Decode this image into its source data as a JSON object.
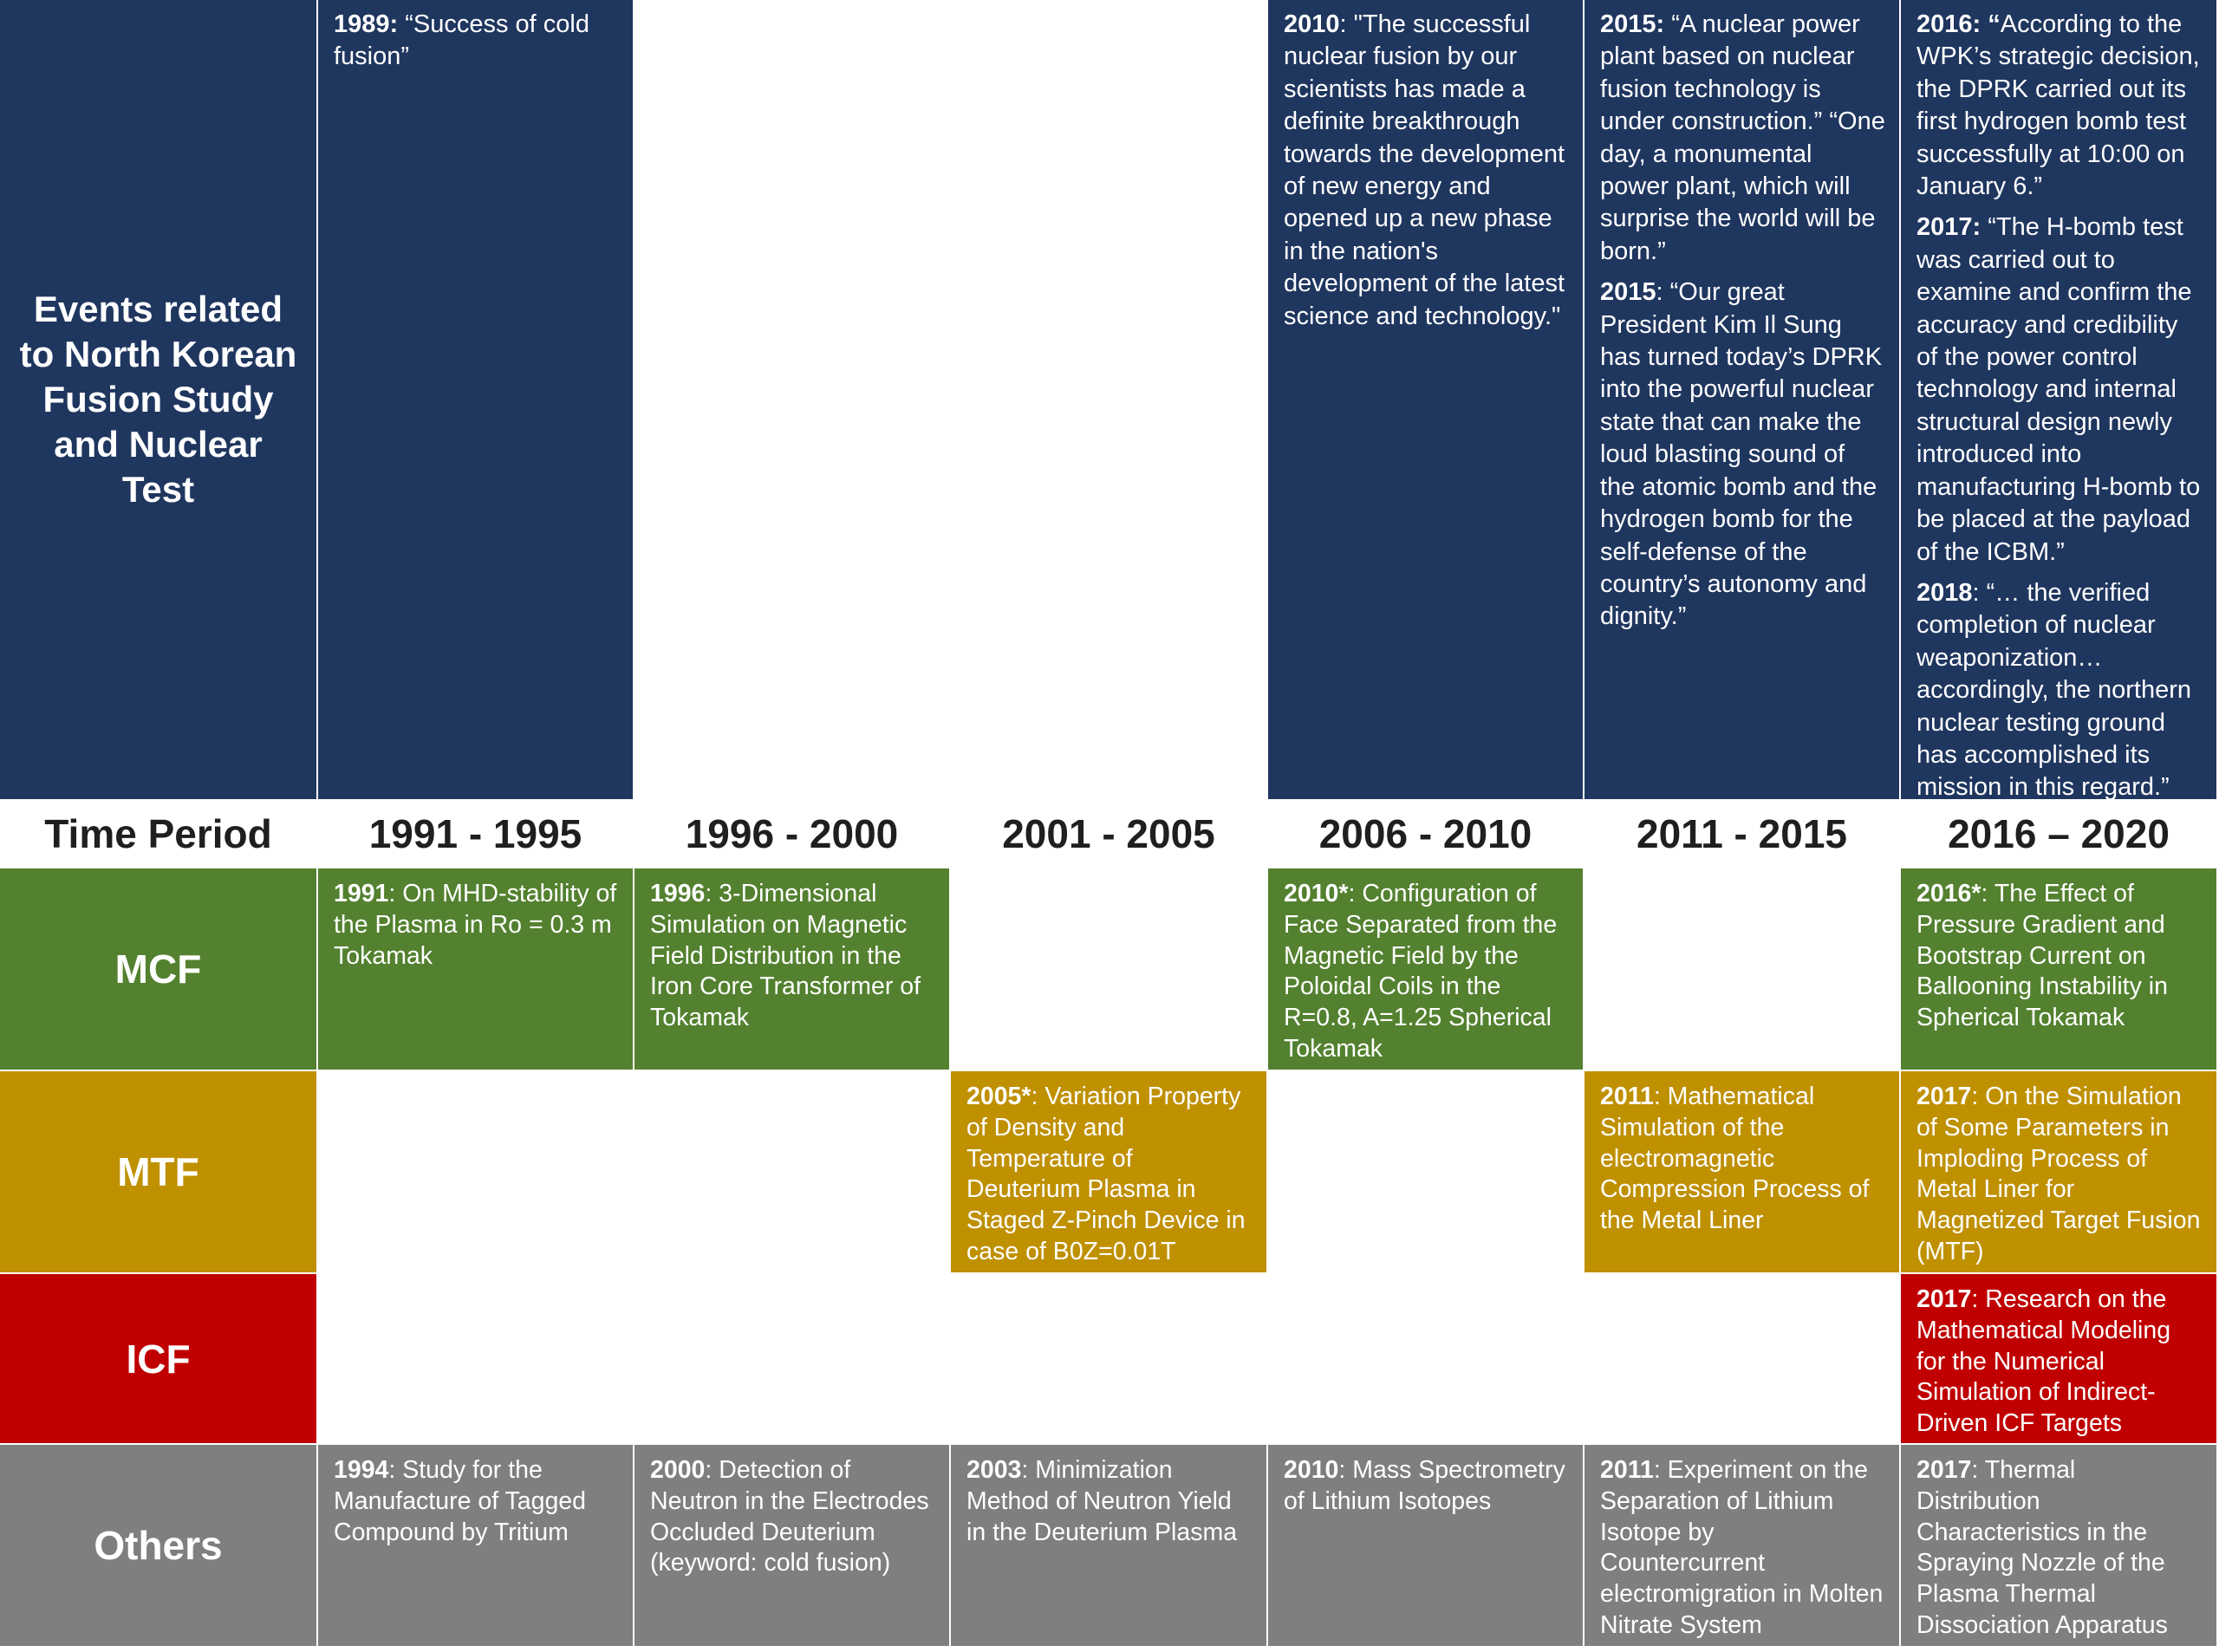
{
  "colors": {
    "events": "#1f365f",
    "mcf": "#53812f",
    "mtf": "#bf9000",
    "icf": "#c00000",
    "others": "#7f7f7f",
    "header_text": "#1f1f1f"
  },
  "events_label": "Events related to North Korean Fusion Study and Nuclear Test",
  "time_period_label": "Time Period",
  "periods": [
    "1991 - 1995",
    "1996 - 2000",
    "2001 - 2005",
    "2006 - 2010",
    "2011 - 2015",
    "2016 – 2020"
  ],
  "events": [
    [
      {
        "year": "1989:",
        "text": " “Success of cold fusion”"
      }
    ],
    [],
    [],
    [
      {
        "year": "2010",
        "text": ": \"The successful nuclear fusion by our scientists has made a definite breakthrough towards the development of new energy and opened up a new phase in the nation's development of the latest science and technology.\""
      }
    ],
    [
      {
        "year": "2015:",
        "text": " “A nuclear power plant based on nuclear fusion technology is under construction.” “One day, a monumental power plant, which will surprise the world will be born.”"
      },
      {
        "year": "2015",
        "text": ": “Our great President Kim Il Sung has turned today’s DPRK into the powerful nuclear state that can make the loud blasting sound of the atomic bomb and the hydrogen bomb for the self-defense of the country’s autonomy and dignity.”"
      }
    ],
    [
      {
        "year": "2016: “",
        "text": "According to the WPK’s strategic decision, the DPRK carried out its first hydrogen bomb test successfully at 10:00 on January 6.”"
      },
      {
        "year": "2017:",
        "text": " “The H-bomb test was carried out to examine and confirm the accuracy and credibility of the power control technology and internal structural design newly introduced into manufacturing H-bomb to be placed at the payload of the ICBM.”"
      },
      {
        "year": "2018",
        "text": ": “… the verified completion of nuclear weaponization… accordingly, the northern nuclear testing ground has accomplished its mission in this regard.”"
      }
    ]
  ],
  "rows": [
    {
      "key": "mcf",
      "label": "MCF",
      "cells": [
        {
          "year": "1991",
          "text": ": On MHD-stability of the Plasma in Ro = 0.3 m Tokamak"
        },
        {
          "year": "1996",
          "text": ": 3-Dimensional Simulation on Magnetic Field Distribution in the Iron Core Transformer of Tokamak"
        },
        null,
        {
          "year": "2010*",
          "text": ": Configuration of Face Separated from the Magnetic Field by the Poloidal Coils in the R=0.8, A=1.25 Spherical Tokamak"
        },
        null,
        {
          "year": "2016*",
          "text": ": The Effect of Pressure Gradient and Bootstrap Current on Ballooning Instability in Spherical Tokamak"
        }
      ]
    },
    {
      "key": "mtf",
      "label": "MTF",
      "cells": [
        null,
        null,
        {
          "year": "2005*",
          "text": ": Variation Property of Density and Temperature of Deuterium Plasma in Staged Z-Pinch Device in case of B0Z=0.01T"
        },
        null,
        {
          "year": "2011",
          "text": ": Mathematical Simulation of the electromagnetic Compression Process of the Metal Liner"
        },
        {
          "year": "2017",
          "text": ": On the Simulation of Some Parameters in Imploding Process of Metal Liner for Magnetized Target Fusion (MTF)"
        }
      ]
    },
    {
      "key": "icf",
      "label": "ICF",
      "cells": [
        null,
        null,
        null,
        null,
        null,
        {
          "year": "2017",
          "text": ": Research on the Mathematical Modeling for the Numerical Simulation of Indirect-Driven ICF Targets"
        }
      ]
    },
    {
      "key": "others",
      "label": "Others",
      "cells": [
        {
          "year": "1994",
          "text": ": Study for the Manufacture of Tagged Compound by Tritium"
        },
        {
          "year": "2000",
          "text": ": Detection of Neutron in the Electrodes Occluded Deuterium (keyword: cold fusion)"
        },
        {
          "year": "2003",
          "text": ": Minimization Method of Neutron Yield in the Deuterium Plasma"
        },
        {
          "year": "2010",
          "text": ": Mass Spectrometry of Lithium Isotopes"
        },
        {
          "year": "2011",
          "text": ": Experiment on the Separation of Lithium Isotope by Countercurrent electromigration in Molten Nitrate System"
        },
        {
          "year": "2017",
          "text": ": Thermal Distribution Characteristics in the Spraying Nozzle of the Plasma Thermal Dissociation Apparatus"
        }
      ]
    }
  ]
}
